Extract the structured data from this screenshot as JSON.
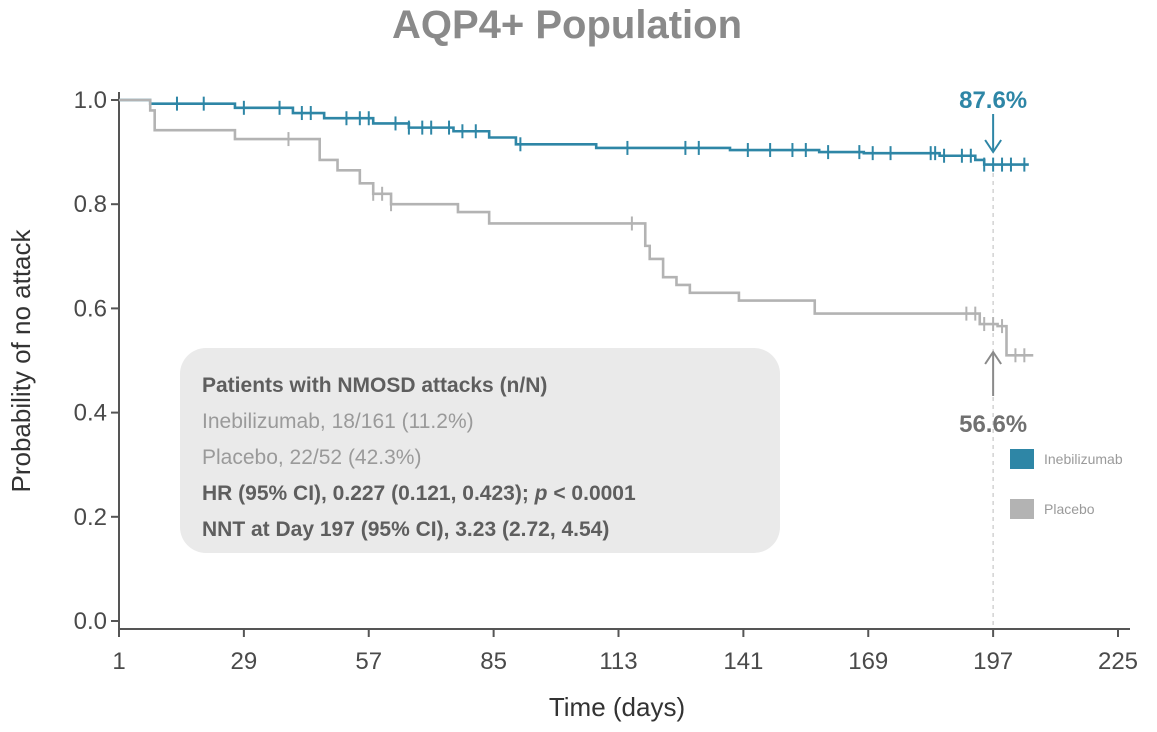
{
  "colors": {
    "inebilizumab": "#2e86a6",
    "placebo": "#b3b3b3",
    "axis": "#555555",
    "title": "#8a8a8a",
    "box_bg": "#eaeaea"
  },
  "chart_data": {
    "type": "line",
    "title": "AQP4+ Population",
    "xlabel": "Time (days)",
    "ylabel": "Probability of no attack",
    "xlim": [
      1,
      225
    ],
    "ylim": [
      0,
      1
    ],
    "x_ticks": [
      "1",
      "29",
      "57",
      "85",
      "113",
      "141",
      "169",
      "197",
      "225"
    ],
    "y_ticks": [
      "0.0",
      "0.2",
      "0.4",
      "0.6",
      "0.8",
      "1.0"
    ],
    "grid": false,
    "legend_position": "right",
    "series": [
      {
        "name": "Inebilizumab",
        "color": "#2e86a6",
        "step": true,
        "points": [
          [
            1,
            1.0
          ],
          [
            8,
            0.993
          ],
          [
            27,
            0.985
          ],
          [
            40,
            0.975
          ],
          [
            47,
            0.965
          ],
          [
            58,
            0.955
          ],
          [
            66,
            0.947
          ],
          [
            76,
            0.94
          ],
          [
            84,
            0.928
          ],
          [
            90,
            0.915
          ],
          [
            108,
            0.908
          ],
          [
            138,
            0.904
          ],
          [
            158,
            0.9
          ],
          [
            168,
            0.898
          ],
          [
            185,
            0.893
          ],
          [
            193,
            0.885
          ],
          [
            195,
            0.876
          ],
          [
            205,
            0.876
          ]
        ],
        "censor_x": [
          14,
          20,
          29,
          37,
          42,
          44,
          52,
          55,
          57,
          63,
          66,
          69,
          71,
          75,
          78,
          81,
          91,
          115,
          128,
          131,
          142,
          147,
          152,
          155,
          160,
          167,
          170,
          174,
          183,
          184,
          186,
          190,
          192,
          195,
          197,
          199,
          201,
          204
        ],
        "annotation": "87.6%",
        "annotation_x": 197
      },
      {
        "name": "Placebo",
        "color": "#b3b3b3",
        "step": true,
        "points": [
          [
            1,
            1.0
          ],
          [
            8,
            0.98
          ],
          [
            9,
            0.942
          ],
          [
            27,
            0.925
          ],
          [
            39,
            0.925
          ],
          [
            46,
            0.885
          ],
          [
            50,
            0.865
          ],
          [
            55,
            0.84
          ],
          [
            58,
            0.82
          ],
          [
            62,
            0.8
          ],
          [
            77,
            0.785
          ],
          [
            84,
            0.763
          ],
          [
            116,
            0.763
          ],
          [
            119,
            0.72
          ],
          [
            120,
            0.695
          ],
          [
            123,
            0.66
          ],
          [
            126,
            0.645
          ],
          [
            129,
            0.63
          ],
          [
            140,
            0.615
          ],
          [
            157,
            0.59
          ],
          [
            191,
            0.59
          ],
          [
            194,
            0.57
          ],
          [
            198,
            0.566
          ],
          [
            200,
            0.51
          ],
          [
            206,
            0.51
          ]
        ],
        "censor_x": [
          39,
          58,
          60,
          62,
          116,
          191,
          193,
          195,
          197,
          199,
          202,
          204
        ],
        "annotation": "56.6%",
        "annotation_x": 197
      }
    ],
    "reference_line_x": 197
  },
  "info_box": {
    "heading": "Patients with NMOSD attacks (n/N)",
    "line1": "Inebilizumab, 18/161 (11.2%)",
    "line2": "Placebo, 22/52 (42.3%)",
    "hr_prefix": "HR (95% CI), 0.227 (0.121, 0.423); ",
    "hr_p": "p",
    "hr_suffix": " < 0.0001",
    "nnt": "NNT at Day 197 (95% CI), 3.23 (2.72, 4.54)"
  },
  "legend": [
    {
      "label": "Inebilizumab",
      "color": "#2e86a6"
    },
    {
      "label": "Placebo",
      "color": "#b3b3b3"
    }
  ]
}
